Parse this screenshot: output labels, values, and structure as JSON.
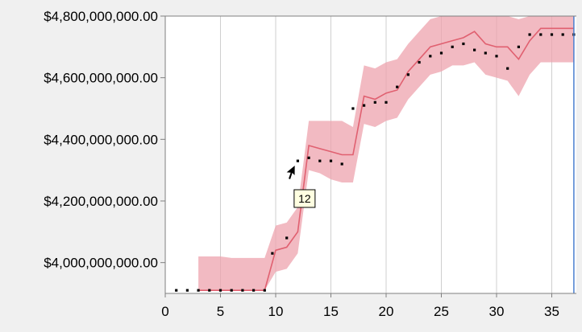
{
  "chart_data": {
    "type": "line",
    "title": "",
    "xlabel": "",
    "ylabel": "",
    "xlim": [
      0,
      37
    ],
    "ylim": [
      3900000000,
      4800000000
    ],
    "x_ticks": [
      0,
      5,
      10,
      15,
      20,
      25,
      30,
      35
    ],
    "x_tick_labels": [
      "0",
      "5",
      "10",
      "15",
      "20",
      "25",
      "30",
      "35"
    ],
    "y_ticks": [
      4000000000,
      4200000000,
      4400000000,
      4600000000,
      4800000000
    ],
    "y_tick_labels": [
      "$4,000,000,000.00",
      "$4,200,000,000.00",
      "$4,400,000,000.00",
      "$4,600,000,000.00",
      "$4,800,000,000.00"
    ],
    "grid": {
      "vertical": true,
      "horizontal": false
    },
    "series": [
      {
        "kind": "line",
        "x": [
          3,
          4,
          5,
          6,
          7,
          8,
          9,
          10,
          11,
          12,
          13,
          14,
          15,
          16,
          17,
          18,
          19,
          20,
          21,
          22,
          23,
          24,
          25,
          26,
          27,
          28,
          29,
          30,
          31,
          32,
          33,
          34,
          35,
          36,
          37
        ],
        "y": [
          3910000000,
          3910000000,
          3910000000,
          3910000000,
          3910000000,
          3910000000,
          3910000000,
          4040000000,
          4050000000,
          4100000000,
          4380000000,
          4370000000,
          4360000000,
          4350000000,
          4350000000,
          4540000000,
          4530000000,
          4550000000,
          4560000000,
          4620000000,
          4660000000,
          4700000000,
          4710000000,
          4720000000,
          4730000000,
          4750000000,
          4710000000,
          4700000000,
          4700000000,
          4660000000,
          4720000000,
          4760000000,
          4760000000,
          4760000000,
          4760000000
        ],
        "color": "#e06070"
      },
      {
        "kind": "band",
        "x": [
          3,
          4,
          5,
          6,
          7,
          8,
          9,
          10,
          11,
          12,
          13,
          14,
          15,
          16,
          17,
          18,
          19,
          20,
          21,
          22,
          23,
          24,
          25,
          26,
          27,
          28,
          29,
          30,
          31,
          32,
          33,
          34,
          35,
          36,
          37
        ],
        "lower": [
          3910000000,
          3910000000,
          3910000000,
          3910000000,
          3910000000,
          3910000000,
          3910000000,
          3970000000,
          3980000000,
          4030000000,
          4300000000,
          4290000000,
          4270000000,
          4260000000,
          4260000000,
          4450000000,
          4440000000,
          4460000000,
          4470000000,
          4530000000,
          4570000000,
          4610000000,
          4620000000,
          4640000000,
          4640000000,
          4650000000,
          4610000000,
          4600000000,
          4590000000,
          4540000000,
          4610000000,
          4650000000,
          4650000000,
          4650000000,
          4650000000
        ],
        "upper": [
          4020000000,
          4020000000,
          4020000000,
          4015000000,
          4015000000,
          4015000000,
          4015000000,
          4120000000,
          4130000000,
          4180000000,
          4460000000,
          4460000000,
          4460000000,
          4460000000,
          4440000000,
          4640000000,
          4630000000,
          4650000000,
          4660000000,
          4710000000,
          4750000000,
          4790000000,
          4800000000,
          4800000000,
          4800000000,
          4800000000,
          4800000000,
          4800000000,
          4800000000,
          4790000000,
          4800000000,
          4800000000,
          4800000000,
          4800000000,
          4800000000
        ],
        "color": "#eea3ad"
      },
      {
        "kind": "dots",
        "x": [
          1,
          2,
          3,
          4,
          5,
          6,
          7,
          8,
          9,
          9.7,
          11,
          12,
          13,
          14,
          15,
          16,
          17,
          18,
          19,
          20,
          21,
          22,
          23,
          24,
          25,
          26,
          27,
          28,
          29,
          30,
          31,
          32,
          33,
          34,
          35,
          36,
          37
        ],
        "y": [
          3910000000,
          3910000000,
          3910000000,
          3910000000,
          3910000000,
          3910000000,
          3910000000,
          3910000000,
          3910000000,
          4030000000,
          4080000000,
          4330000000,
          4340000000,
          4330000000,
          4330000000,
          4320000000,
          4500000000,
          4510000000,
          4520000000,
          4520000000,
          4570000000,
          4610000000,
          4650000000,
          4670000000,
          4680000000,
          4700000000,
          4710000000,
          4690000000,
          4680000000,
          4670000000,
          4630000000,
          4700000000,
          4740000000,
          4740000000,
          4740000000,
          4740000000,
          4740000000
        ],
        "color": "#000000"
      },
      {
        "kind": "vline",
        "x": 37,
        "color": "#4a80d0"
      }
    ],
    "cursor": {
      "x": 11.4,
      "y": 4260000000
    },
    "tooltip": {
      "text": "12",
      "x": 12.4,
      "y": 4200000000
    }
  }
}
